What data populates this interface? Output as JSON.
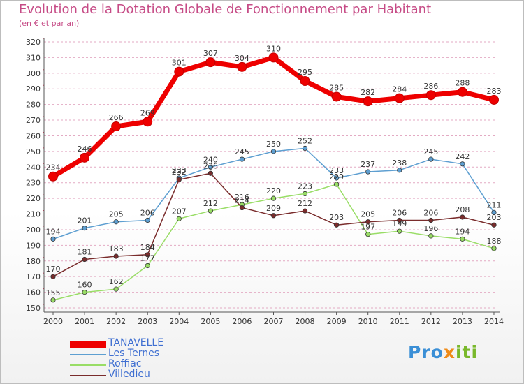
{
  "title": "Evolution de la Dotation Globale de Fonctionnement par Habitant",
  "subtitle": "(en € et par an)",
  "logo": {
    "p1": "Pro",
    "p2": "x",
    "p3": "iti"
  },
  "colors": {
    "title": "#c64b86",
    "legend_text": "#3f6fd1",
    "grid": "#e3aac3",
    "axis": "#555555",
    "tick_text": "#333333"
  },
  "chart_data": {
    "type": "line",
    "title": "Evolution de la Dotation Globale de Fonctionnement par Habitant",
    "subtitle": "(en € et par an)",
    "x": [
      2000,
      2001,
      2002,
      2003,
      2004,
      2005,
      2006,
      2007,
      2008,
      2009,
      2010,
      2011,
      2012,
      2013,
      2014
    ],
    "xlabel": "",
    "ylabel": "",
    "ylim": [
      150,
      320
    ],
    "yticks": [
      150,
      160,
      170,
      180,
      190,
      200,
      210,
      220,
      230,
      240,
      250,
      260,
      270,
      280,
      290,
      300,
      310,
      320
    ],
    "grid": "horizontal dashed",
    "legend_position": "bottom-left",
    "series": [
      {
        "name": "TANAVELLE",
        "color": "#ee0000",
        "values": [
          234,
          246,
          266,
          269,
          301,
          307,
          304,
          310,
          295,
          285,
          282,
          284,
          286,
          288,
          283
        ]
      },
      {
        "name": "Les Ternes",
        "color": "#5e9fd1",
        "values": [
          194,
          201,
          205,
          206,
          233,
          240,
          245,
          250,
          252,
          233,
          237,
          238,
          245,
          242,
          211
        ]
      },
      {
        "name": "Roffiac",
        "color": "#99dd66",
        "values": [
          155,
          160,
          162,
          177,
          207,
          212,
          216,
          220,
          223,
          229,
          197,
          199,
          196,
          194,
          188
        ]
      },
      {
        "name": "Villedieu",
        "color": "#7a2c2c",
        "values": [
          170,
          181,
          183,
          184,
          232,
          236,
          214,
          209,
          212,
          203,
          205,
          206,
          206,
          208,
          203
        ]
      }
    ]
  }
}
